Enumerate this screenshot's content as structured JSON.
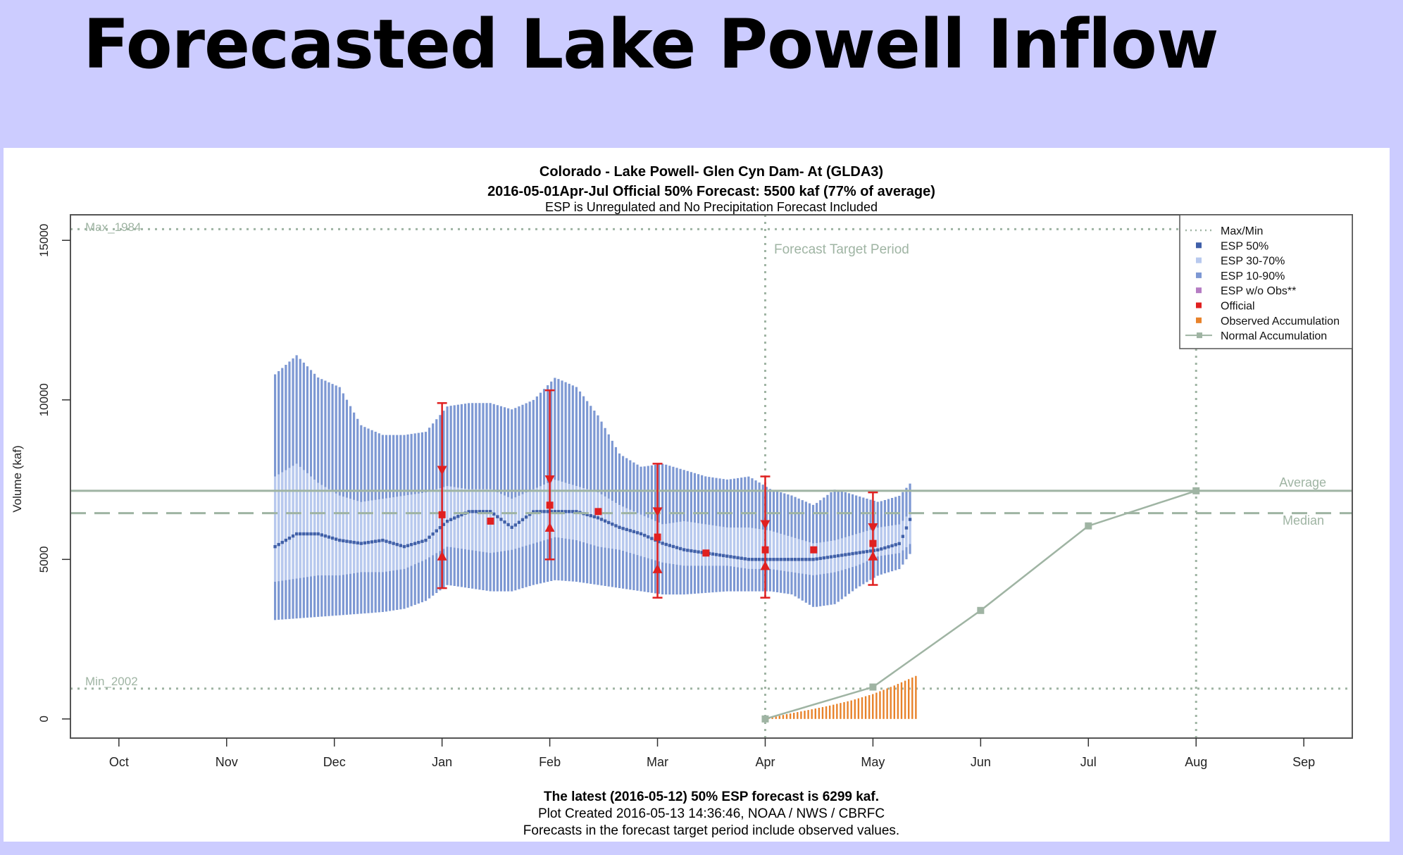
{
  "slide_title": "Forecasted Lake Powell Inflow",
  "chart_data": {
    "type": "line",
    "title": "Colorado - Lake Powell- Glen Cyn Dam- At (GLDA3)",
    "subtitle": "2016-05-01Apr-Jul Official 50% Forecast: 5500 kaf (77% of average)",
    "note": "ESP is Unregulated and No Precipitation Forecast Included",
    "ylabel": "Volume (kaf)",
    "xlabel": "",
    "ylim": [
      -600,
      15800
    ],
    "yticks": [
      0,
      5000,
      10000,
      15000
    ],
    "xlim": [
      -0.45,
      11.45
    ],
    "months": [
      "Oct",
      "Nov",
      "Dec",
      "Jan",
      "Feb",
      "Mar",
      "Apr",
      "May",
      "Jun",
      "Jul",
      "Aug",
      "Sep"
    ],
    "legend_position": "top-right",
    "legend": [
      {
        "label": "Max/Min",
        "style": "dotted",
        "color": "#9fb4a3"
      },
      {
        "label": "ESP 50%",
        "style": "square",
        "color": "#3f5fa8"
      },
      {
        "label": "ESP 30-70%",
        "style": "square",
        "color": "#b8c9ee"
      },
      {
        "label": "ESP 10-90%",
        "style": "square",
        "color": "#7d98d3"
      },
      {
        "label": "ESP w/o Obs**",
        "style": "square",
        "color": "#b57cc3"
      },
      {
        "label": "Official",
        "style": "square",
        "color": "#e02020"
      },
      {
        "label": "Observed Accumulation",
        "style": "square",
        "color": "#e8822a"
      },
      {
        "label": "Normal Accumulation",
        "style": "line-point",
        "color": "#9fb4a3"
      }
    ],
    "reference_lines": {
      "max": {
        "label": "Max_1984",
        "value": 15350
      },
      "min": {
        "label": "Min_2002",
        "value": 950
      },
      "average": {
        "label": "Average",
        "value": 7150
      },
      "median": {
        "label": "Median",
        "value": 6450
      }
    },
    "forecast_target_period": {
      "label": "Forecast Target Period",
      "start": 6,
      "end": 10
    },
    "esp_series": {
      "x": [
        1.45,
        1.65,
        1.85,
        2.05,
        2.25,
        2.45,
        2.65,
        2.85,
        3.05,
        3.25,
        3.45,
        3.65,
        3.85,
        4.05,
        4.25,
        4.45,
        4.65,
        4.85,
        5.05,
        5.25,
        5.45,
        5.65,
        5.85,
        6.05,
        6.25,
        6.45,
        6.65,
        6.85,
        7.05,
        7.25,
        7.35
      ],
      "p10": [
        3100,
        3150,
        3200,
        3250,
        3300,
        3350,
        3450,
        3700,
        4200,
        4100,
        4000,
        4000,
        4200,
        4350,
        4300,
        4200,
        4100,
        4000,
        3900,
        3900,
        3950,
        4000,
        4000,
        4000,
        3900,
        3500,
        3600,
        4100,
        4500,
        4700,
        5200
      ],
      "p30": [
        4300,
        4400,
        4500,
        4500,
        4600,
        4600,
        4700,
        5000,
        5400,
        5300,
        5200,
        5300,
        5500,
        5700,
        5600,
        5400,
        5300,
        5100,
        4900,
        4800,
        4800,
        4800,
        4700,
        4700,
        4600,
        4500,
        4600,
        4800,
        5100,
        5200,
        5500
      ],
      "p50": [
        5400,
        5800,
        5800,
        5600,
        5500,
        5600,
        5400,
        5600,
        6200,
        6500,
        6500,
        6000,
        6500,
        6500,
        6500,
        6300,
        6000,
        5800,
        5500,
        5300,
        5200,
        5100,
        5000,
        5000,
        5000,
        5000,
        5100,
        5200,
        5300,
        5500,
        6300
      ],
      "p70": [
        7600,
        8000,
        7400,
        7000,
        6800,
        6900,
        7000,
        7100,
        7300,
        7200,
        7200,
        6900,
        7200,
        7500,
        7300,
        7100,
        6700,
        6400,
        6100,
        6200,
        6100,
        6000,
        6000,
        5900,
        5700,
        5500,
        5600,
        5800,
        6000,
        6100,
        6500
      ],
      "p90": [
        10800,
        11400,
        10700,
        10400,
        9200,
        8900,
        8900,
        9000,
        9800,
        9900,
        9900,
        9700,
        10000,
        10700,
        10400,
        9500,
        8300,
        7900,
        8000,
        7800,
        7600,
        7500,
        7600,
        7200,
        7000,
        6700,
        7200,
        7000,
        6800,
        7000,
        7400
      ]
    },
    "official": {
      "x": [
        3,
        3.45,
        4,
        4.45,
        5,
        5.45,
        6,
        6.45,
        7
      ],
      "p50": [
        6400,
        6200,
        6700,
        6500,
        5700,
        5200,
        5300,
        5300,
        5500
      ],
      "p10": [
        4100,
        null,
        5000,
        null,
        3800,
        null,
        3800,
        null,
        4200
      ],
      "p30": [
        5100,
        null,
        6000,
        null,
        4700,
        null,
        4800,
        null,
        5100
      ],
      "p70": [
        7800,
        null,
        7500,
        null,
        6500,
        null,
        6100,
        null,
        6000
      ],
      "p90": [
        9900,
        null,
        10300,
        null,
        8000,
        null,
        7600,
        null,
        7100
      ]
    },
    "observed_accumulation": {
      "x": [
        6,
        6.2,
        6.4,
        6.6,
        6.8,
        7,
        7.2,
        7.4
      ],
      "values": [
        0,
        150,
        280,
        420,
        580,
        780,
        1050,
        1350
      ]
    },
    "normal_accumulation": {
      "x": [
        6,
        7,
        8,
        9,
        10
      ],
      "values": [
        0,
        1000,
        3400,
        6050,
        7150
      ]
    },
    "footer": {
      "line1": "The latest (2016-05-12) 50% ESP forecast is 6299 kaf.",
      "line2": "Plot Created 2016-05-13 14:36:46, NOAA / NWS / CBRFC",
      "line3": "Forecasts in the forecast target period include observed values."
    },
    "colors": {
      "reference": "#9fb4a3",
      "esp90": "#7d98d3",
      "esp70": "#b8c9ee",
      "esp50": "#3f5fa8",
      "official": "#e02020",
      "observed": "#e8822a",
      "normal": "#9fb4a3",
      "axis": "#333333"
    }
  }
}
